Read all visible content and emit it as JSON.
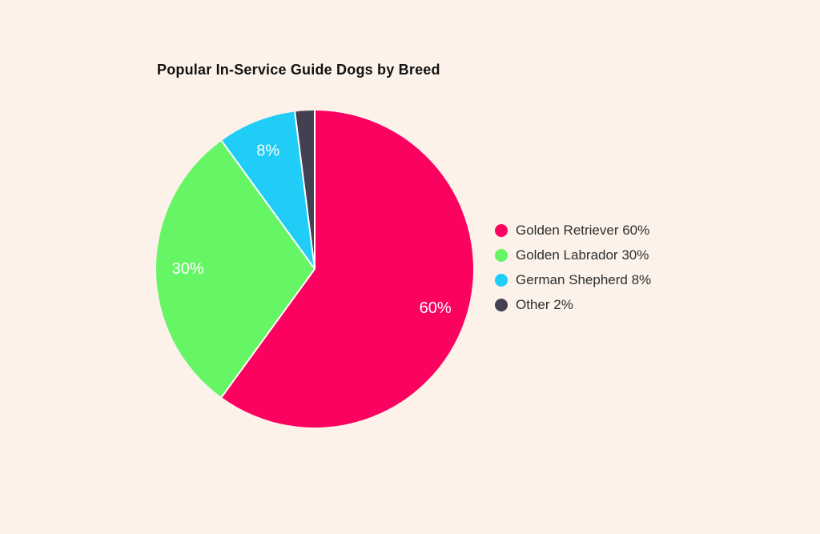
{
  "page": {
    "background_color": "#FCF2EA"
  },
  "chart_data": {
    "type": "pie",
    "title": "Popular In-Service Guide Dogs by Breed",
    "title_color": "#111111",
    "legend_position": "right",
    "direction": "clockwise",
    "start_angle_deg": 0,
    "slice_separator_color": "#FFFFFF",
    "slice_label_color": "#FFFFFF",
    "legend_text_color": "#2E2E2E",
    "slices": [
      {
        "name": "Golden Retriever",
        "value": 60,
        "percent_label": "60%",
        "legend_label": "Golden Retriever 60%",
        "color": "#FB0261"
      },
      {
        "name": "Golden Labrador",
        "value": 30,
        "percent_label": "30%",
        "legend_label": "Golden Labrador 30%",
        "color": "#65F565"
      },
      {
        "name": "German Shepherd",
        "value": 8,
        "percent_label": "8%",
        "legend_label": "German Shepherd 8%",
        "color": "#1FCDF7"
      },
      {
        "name": "Other",
        "value": 2,
        "percent_label": "",
        "legend_label": "Other 2%",
        "color": "#434051"
      }
    ]
  }
}
